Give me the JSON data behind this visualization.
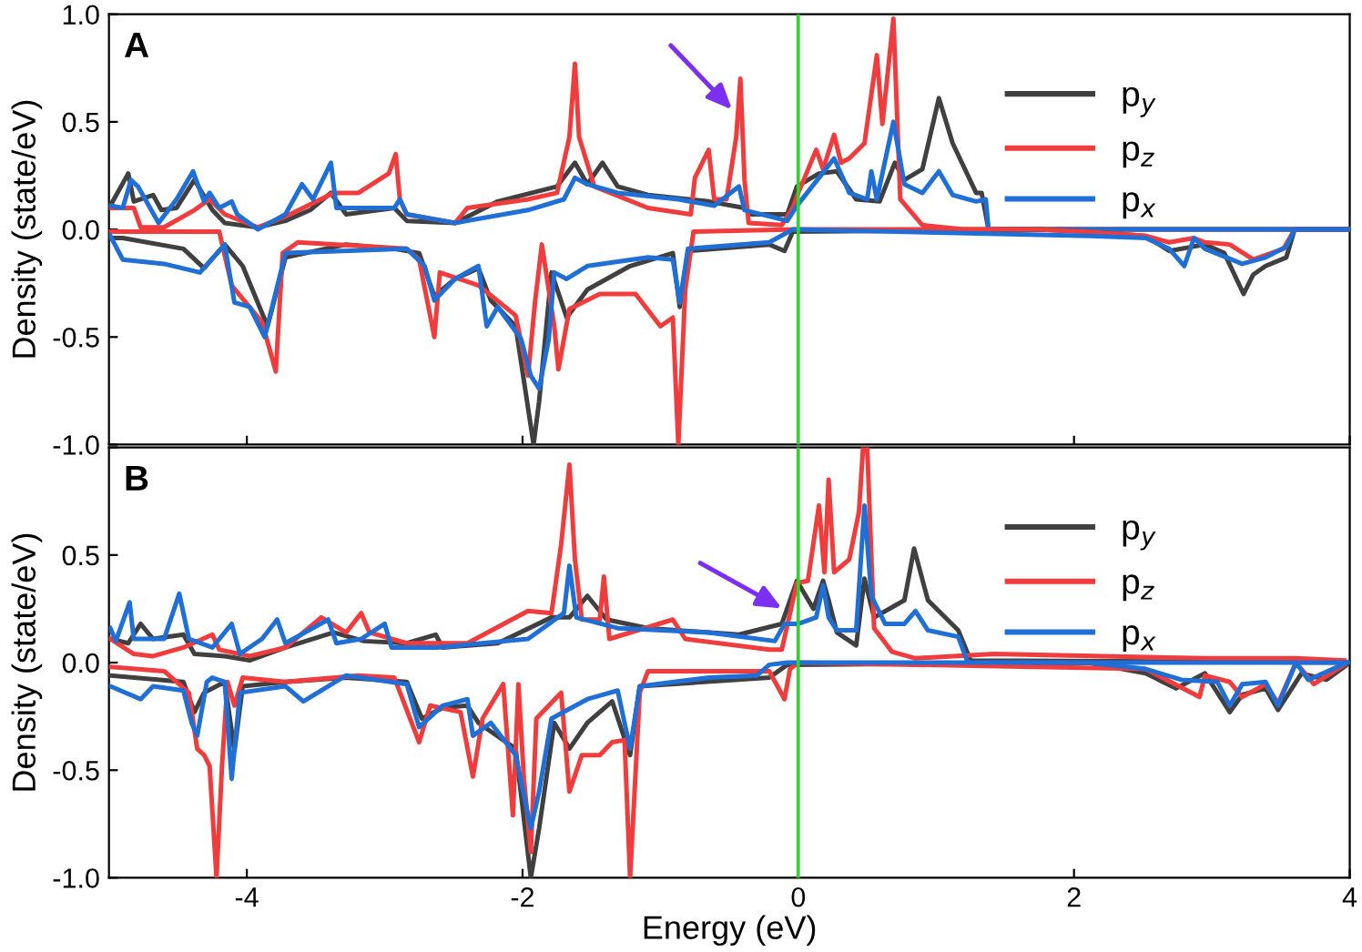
{
  "chart_data": [
    {
      "type": "line",
      "ylabel": "Density (state/eV)",
      "annotations": [
        "A"
      ],
      "xlim": [
        -5,
        4
      ],
      "ylim": [
        -1,
        1
      ],
      "xticks": [
        -4,
        -2,
        0,
        2,
        4
      ],
      "yticks": [
        {
          "value": -1,
          "label": "-1.0"
        },
        {
          "value": -0.5,
          "label": "-0.5"
        },
        {
          "value": 0,
          "label": "0.0"
        },
        {
          "value": 0.5,
          "label": "0.5"
        },
        {
          "value": 1,
          "label": "1.0"
        }
      ],
      "tick_labels": "y",
      "grid": false,
      "legend": "top right",
      "line_style": "solid",
      "marker": "none",
      "ref_lines": [
        {
          "axis": "x",
          "value": 0,
          "label": null,
          "color": "#22dd22"
        }
      ],
      "series": [
        {
          "name": "p$_{y}$",
          "color": "#404040",
          "x": [
            -4.99,
            -4.86,
            -4.82,
            -4.68,
            -4.62,
            -4.51,
            -4.38,
            -4.25,
            -4.16,
            -3.92,
            -3.72,
            -3.54,
            -3.39,
            -3.28,
            -2.93,
            -2.84,
            -2.49,
            -2.18,
            -1.75,
            -1.62,
            -1.53,
            -1.42,
            -1.31,
            -1.09,
            -0.65,
            -0.39,
            -0.34,
            -0.08,
            -0.01,
            0.15,
            0.28,
            0.42,
            0.59,
            0.7,
            0.77,
            0.9,
            1.02,
            1.12,
            1.29,
            1.33,
            1.38,
            4
          ],
          "values": [
            0.11,
            0.26,
            0.13,
            0.16,
            0.09,
            0.1,
            0.23,
            0.09,
            0.03,
            0.01,
            0.04,
            0.09,
            0.17,
            0.07,
            0.1,
            0.04,
            0.03,
            0.13,
            0.2,
            0.31,
            0.21,
            0.31,
            0.2,
            0.16,
            0.13,
            0.1,
            0.07,
            0.07,
            0.2,
            0.26,
            0.27,
            0.14,
            0.13,
            0.31,
            0.23,
            0.28,
            0.61,
            0.4,
            0.17,
            0.17,
            0,
            0
          ]
        },
        {
          "name": "p$_{z}$",
          "color": "#f03c3c",
          "x": [
            -4.99,
            -4.82,
            -4.77,
            -4.6,
            -4.38,
            -4.27,
            -4.16,
            -3.92,
            -3.72,
            -3.37,
            -3.19,
            -2.97,
            -2.92,
            -2.89,
            -2.84,
            -2.49,
            -2.4,
            -1.96,
            -1.75,
            -1.66,
            -1.62,
            -1.59,
            -1.48,
            -1.09,
            -0.78,
            -0.75,
            -0.65,
            -0.61,
            -0.52,
            -0.45,
            -0.42,
            -0.39,
            -0.36,
            -0.12,
            -0.04,
            0,
            0.13,
            0.18,
            0.26,
            0.31,
            0.37,
            0.48,
            0.57,
            0.61,
            0.69,
            0.74,
            0.9,
            1.2,
            4
          ],
          "values": [
            0.1,
            0.1,
            0.01,
            0.01,
            0.09,
            0.14,
            0.07,
            0.01,
            0.06,
            0.17,
            0.17,
            0.26,
            0.35,
            0.14,
            0.07,
            0.03,
            0.1,
            0.14,
            0.17,
            0.43,
            0.77,
            0.43,
            0.2,
            0.1,
            0.07,
            0.24,
            0.37,
            0.14,
            0.14,
            0.43,
            0.7,
            0.23,
            0.03,
            0.02,
            0.1,
            0.17,
            0.37,
            0.28,
            0.44,
            0.31,
            0.33,
            0.4,
            0.81,
            0.49,
            0.98,
            0.14,
            0.02,
            0,
            0
          ]
        },
        {
          "name": "p$_{x}$",
          "color": "#1f6fd6",
          "x": [
            -4.99,
            -4.9,
            -4.84,
            -4.79,
            -4.64,
            -4.51,
            -4.39,
            -4.31,
            -4.27,
            -4.2,
            -4.11,
            -4.07,
            -3.92,
            -3.72,
            -3.6,
            -3.52,
            -3.39,
            -3.35,
            -2.93,
            -2.89,
            -2.84,
            -2.49,
            -1.96,
            -1.7,
            -1.62,
            -1.53,
            -1.31,
            -0.87,
            -0.61,
            -0.43,
            -0.39,
            -0.08,
            -0.01,
            0.15,
            0.26,
            0.33,
            0.37,
            0.5,
            0.53,
            0.57,
            0.69,
            0.77,
            0.9,
            1.02,
            1.12,
            1.29,
            1.36,
            1.38,
            4
          ],
          "values": [
            0.11,
            0.1,
            0.23,
            0.2,
            0.03,
            0.14,
            0.27,
            0.13,
            0.17,
            0.1,
            0.13,
            0.07,
            0,
            0.07,
            0.21,
            0.14,
            0.31,
            0.1,
            0.1,
            0.14,
            0.07,
            0.03,
            0.09,
            0.14,
            0.24,
            0.21,
            0.17,
            0.14,
            0.11,
            0.2,
            0.09,
            0.04,
            0.11,
            0.24,
            0.33,
            0.23,
            0.17,
            0.14,
            0.27,
            0.14,
            0.5,
            0.21,
            0.17,
            0.27,
            0.16,
            0.13,
            0.14,
            0,
            0
          ]
        },
        {
          "color": "#404040",
          "x": [
            -4.99,
            -4.9,
            -4.46,
            -4.31,
            -4.16,
            -4.03,
            -3.85,
            -3.72,
            -3.28,
            -2.93,
            -2.75,
            -2.64,
            -2.49,
            -2.32,
            -2.23,
            -2.05,
            -1.92,
            -1.88,
            -1.79,
            -1.68,
            -1.53,
            -1.22,
            -0.91,
            -0.86,
            -0.8,
            -0.21,
            -0.1,
            -0.04,
            1.73,
            2.08,
            2.52,
            2.69,
            2.95,
            3.09,
            3.23,
            3.3,
            3.39,
            3.54,
            3.6,
            4
          ],
          "values": [
            -0.04,
            -0.04,
            -0.09,
            -0.18,
            -0.07,
            -0.17,
            -0.45,
            -0.13,
            -0.07,
            -0.09,
            -0.11,
            -0.31,
            -0.23,
            -0.18,
            -0.33,
            -0.45,
            -1.0,
            -0.8,
            -0.2,
            -0.41,
            -0.28,
            -0.17,
            -0.11,
            -0.36,
            -0.1,
            -0.07,
            -0.1,
            -0.01,
            0,
            -0.01,
            -0.03,
            -0.1,
            -0.07,
            -0.11,
            -0.3,
            -0.21,
            -0.17,
            -0.13,
            0,
            0
          ]
        },
        {
          "color": "#f03c3c",
          "x": [
            -4.99,
            -4.2,
            -4.11,
            -3.89,
            -3.79,
            -3.74,
            -3.63,
            -2.84,
            -2.75,
            -2.64,
            -2.6,
            -2.32,
            -2.05,
            -1.96,
            -1.91,
            -1.86,
            -1.77,
            -1.74,
            -1.66,
            -1.44,
            -1.18,
            -1.0,
            -0.91,
            -0.87,
            -0.82,
            -0.76,
            -0.01,
            1.73,
            2.08,
            2.52,
            2.69,
            2.87,
            2.95,
            3.13,
            3.3,
            3.52,
            3.6,
            4
          ],
          "values": [
            -0.01,
            -0.01,
            -0.26,
            -0.43,
            -0.66,
            -0.11,
            -0.06,
            -0.09,
            -0.14,
            -0.5,
            -0.2,
            -0.26,
            -0.4,
            -0.68,
            -0.34,
            -0.07,
            -0.45,
            -0.65,
            -0.37,
            -0.3,
            -0.3,
            -0.45,
            -0.41,
            -1.0,
            -0.28,
            -0.01,
            0,
            0,
            -0.01,
            -0.03,
            -0.06,
            -0.04,
            -0.06,
            -0.07,
            -0.14,
            -0.09,
            0,
            0
          ]
        },
        {
          "color": "#1f6fd6",
          "x": [
            -4.99,
            -4.9,
            -4.6,
            -4.34,
            -4.16,
            -4.09,
            -3.98,
            -3.87,
            -3.72,
            -2.84,
            -2.71,
            -2.64,
            -2.49,
            -2.32,
            -2.26,
            -2.18,
            -2.01,
            -1.94,
            -1.88,
            -1.81,
            -1.77,
            -1.68,
            -1.53,
            -1.09,
            -0.91,
            -0.86,
            -0.8,
            -0.21,
            -0.04,
            2.12,
            2.52,
            2.69,
            2.8,
            2.87,
            2.95,
            3.22,
            3.39,
            3.54,
            3.6,
            4
          ],
          "values": [
            -0.03,
            -0.14,
            -0.16,
            -0.2,
            -0.07,
            -0.34,
            -0.36,
            -0.5,
            -0.11,
            -0.09,
            -0.17,
            -0.33,
            -0.23,
            -0.17,
            -0.45,
            -0.36,
            -0.51,
            -0.68,
            -0.74,
            -0.51,
            -0.2,
            -0.23,
            -0.17,
            -0.13,
            -0.14,
            -0.34,
            -0.09,
            -0.06,
            0,
            -0.03,
            -0.04,
            -0.09,
            -0.17,
            -0.04,
            -0.09,
            -0.16,
            -0.13,
            -0.08,
            0,
            0
          ]
        }
      ]
    },
    {
      "type": "line",
      "xlabel": "Energy (eV)",
      "ylabel": "Density (state/eV)",
      "annotations": [
        "B"
      ],
      "xlim": [
        -5,
        4
      ],
      "ylim": [
        -1,
        1
      ],
      "xticks": [
        -4,
        -2,
        0,
        2,
        4
      ],
      "yticks": [
        {
          "value": -1,
          "label": "-1.0"
        },
        {
          "value": -0.5,
          "label": "-0.5"
        },
        {
          "value": 0,
          "label": "0.0"
        },
        {
          "value": 0.5,
          "label": "0.5"
        },
        {
          "value": 1,
          "label": null
        }
      ],
      "grid": false,
      "legend": "top right",
      "line_style": "solid",
      "marker": "none",
      "ref_lines": [
        {
          "axis": "x",
          "value": 0,
          "label": null,
          "color": "#22dd22"
        }
      ],
      "series": [
        {
          "name": "p$_{y}$",
          "color": "#404040",
          "x": [
            -4.99,
            -4.86,
            -4.77,
            -4.68,
            -4.46,
            -4.38,
            -4.16,
            -3.98,
            -3.72,
            -3.37,
            -3.15,
            -2.84,
            -2.63,
            -2.58,
            -2.18,
            -1.79,
            -1.66,
            -1.53,
            -1.39,
            -1.09,
            -0.43,
            -0.12,
            -0.01,
            0.11,
            0.18,
            0.22,
            0.28,
            0.42,
            0.48,
            0.55,
            0.77,
            0.84,
            0.94,
            1.16,
            1.25,
            4
          ],
          "values": [
            0.11,
            0.09,
            0.18,
            0.11,
            0.13,
            0.04,
            0.03,
            0.01,
            0.07,
            0.14,
            0.1,
            0.09,
            0.13,
            0.07,
            0.09,
            0.21,
            0.21,
            0.31,
            0.2,
            0.16,
            0.13,
            0.18,
            0.38,
            0.25,
            0.38,
            0.29,
            0.14,
            0.08,
            0.39,
            0.21,
            0.29,
            0.53,
            0.29,
            0.15,
            0.01,
            0
          ]
        },
        {
          "name": "p$_{z}$",
          "color": "#f03c3c",
          "x": [
            -4.99,
            -4.82,
            -4.68,
            -4.46,
            -4.25,
            -4.2,
            -3.98,
            -3.72,
            -3.46,
            -3.28,
            -3.17,
            -3.11,
            -2.84,
            -2.4,
            -1.96,
            -1.79,
            -1.72,
            -1.66,
            -1.62,
            -1.57,
            -1.44,
            -1.41,
            -1.37,
            -0.91,
            -0.82,
            -0.21,
            -0.12,
            -0.01,
            0.07,
            0.15,
            0.19,
            0.22,
            0.26,
            0.37,
            0.44,
            0.47,
            0.5,
            0.55,
            0.68,
            0.85,
            1.42,
            2.95,
            3.61,
            3.96
          ],
          "values": [
            0.11,
            0.04,
            0.03,
            0.07,
            0.13,
            0.06,
            0.03,
            0.07,
            0.21,
            0.14,
            0.23,
            0.14,
            0.09,
            0.09,
            0.24,
            0.23,
            0.55,
            0.92,
            0.48,
            0.2,
            0.2,
            0.4,
            0.11,
            0.2,
            0.11,
            0.06,
            0.06,
            0.37,
            0.38,
            0.73,
            0.42,
            0.85,
            0.42,
            0.48,
            0.7,
            1.0,
            1.0,
            0.16,
            0.05,
            0.02,
            0.04,
            0.02,
            0.02,
            0.01
          ]
        },
        {
          "name": "p$_{x}$",
          "color": "#1f6fd6",
          "x": [
            -4.99,
            -4.95,
            -4.85,
            -4.82,
            -4.6,
            -4.49,
            -4.42,
            -4.25,
            -4.11,
            -4.05,
            -3.89,
            -3.78,
            -3.72,
            -3.41,
            -3.35,
            -3.17,
            -3.0,
            -2.95,
            -2.62,
            -1.96,
            -1.7,
            -1.66,
            -1.61,
            -1.31,
            -0.65,
            -0.17,
            -0.1,
            0,
            0.13,
            0.18,
            0.22,
            0.28,
            0.42,
            0.48,
            0.53,
            0.63,
            0.77,
            0.85,
            0.94,
            1.16,
            1.23,
            4
          ],
          "values": [
            0.16,
            0.1,
            0.28,
            0.11,
            0.11,
            0.32,
            0.11,
            0.07,
            0.18,
            0.04,
            0.11,
            0.2,
            0.09,
            0.2,
            0.09,
            0.11,
            0.18,
            0.07,
            0.07,
            0.11,
            0.23,
            0.45,
            0.21,
            0.16,
            0.14,
            0.1,
            0.18,
            0.18,
            0.21,
            0.36,
            0.21,
            0.15,
            0.15,
            0.73,
            0.31,
            0.18,
            0.18,
            0.24,
            0.15,
            0.12,
            0,
            0
          ]
        },
        {
          "color": "#404040",
          "x": [
            -4.99,
            -4.46,
            -4.38,
            -4.31,
            -4.16,
            -4.09,
            -4.03,
            -3.72,
            -3.28,
            -2.84,
            -2.73,
            -2.58,
            -2.4,
            -2.32,
            -2.05,
            -1.94,
            -1.88,
            -1.77,
            -1.66,
            -1.53,
            -1.35,
            -1.22,
            -1.15,
            -0.21,
            -0.08,
            2.1,
            2.52,
            2.74,
            2.95,
            3.13,
            3.22,
            3.39,
            3.48,
            3.65,
            3.83,
            3.98
          ],
          "values": [
            -0.06,
            -0.09,
            -0.23,
            -0.14,
            -0.09,
            -0.41,
            -0.11,
            -0.09,
            -0.07,
            -0.09,
            -0.26,
            -0.21,
            -0.2,
            -0.28,
            -0.4,
            -1.0,
            -0.77,
            -0.28,
            -0.4,
            -0.28,
            -0.18,
            -0.43,
            -0.11,
            -0.07,
            -0.01,
            0,
            -0.05,
            -0.12,
            -0.05,
            -0.23,
            -0.15,
            -0.12,
            -0.22,
            -0.05,
            -0.08,
            -0.01
          ]
        },
        {
          "color": "#f03c3c",
          "x": [
            -4.99,
            -4.6,
            -4.42,
            -4.36,
            -4.31,
            -4.27,
            -4.22,
            -4.18,
            -4.14,
            -4.09,
            -4.03,
            -3.72,
            -3.19,
            -2.93,
            -2.75,
            -2.67,
            -2.45,
            -2.36,
            -2.29,
            -2.14,
            -2.07,
            -2.03,
            -1.99,
            -1.94,
            -1.9,
            -1.81,
            -1.72,
            -1.66,
            -1.57,
            -1.44,
            -1.35,
            -1.26,
            -1.22,
            -1.15,
            -1.09,
            -0.21,
            -0.1,
            -0.06,
            0,
            2.52,
            2.91,
            2.95,
            3.13,
            3.22,
            3.39,
            3.48,
            3.61,
            3.74,
            3.96
          ],
          "values": [
            -0.02,
            -0.04,
            -0.14,
            -0.4,
            -0.43,
            -0.48,
            -1.0,
            -0.48,
            -0.09,
            -0.2,
            -0.07,
            -0.09,
            -0.06,
            -0.07,
            -0.37,
            -0.2,
            -0.23,
            -0.53,
            -0.26,
            -0.1,
            -0.71,
            -0.1,
            -0.54,
            -0.88,
            -0.26,
            -0.2,
            -0.14,
            -0.6,
            -0.43,
            -0.43,
            -0.37,
            -0.36,
            -1.0,
            -0.14,
            -0.04,
            -0.04,
            -0.17,
            -0.03,
            0,
            -0.03,
            -0.16,
            -0.06,
            -0.09,
            -0.16,
            -0.1,
            -0.19,
            0,
            -0.1,
            -0.01
          ]
        },
        {
          "color": "#1f6fd6",
          "x": [
            -4.99,
            -4.77,
            -4.68,
            -4.46,
            -4.4,
            -4.36,
            -4.29,
            -4.25,
            -4.16,
            -4.11,
            -4.05,
            -3.72,
            -3.59,
            -3.28,
            -2.84,
            -2.75,
            -2.58,
            -2.4,
            -2.36,
            -2.23,
            -2.05,
            -1.94,
            -1.88,
            -1.79,
            -1.53,
            -1.31,
            -1.22,
            -1.15,
            -0.65,
            -0.3,
            -0.21,
            -0.08,
            2.1,
            2.52,
            2.78,
            3.04,
            3.13,
            3.22,
            3.39,
            3.48,
            3.61,
            3.7,
            3.98
          ],
          "values": [
            -0.11,
            -0.17,
            -0.11,
            -0.13,
            -0.28,
            -0.34,
            -0.09,
            -0.07,
            -0.09,
            -0.54,
            -0.14,
            -0.11,
            -0.18,
            -0.06,
            -0.1,
            -0.3,
            -0.2,
            -0.17,
            -0.34,
            -0.28,
            -0.43,
            -0.77,
            -0.6,
            -0.26,
            -0.17,
            -0.13,
            -0.4,
            -0.11,
            -0.07,
            -0.06,
            -0.01,
            0,
            0,
            -0.03,
            -0.08,
            -0.09,
            -0.2,
            -0.1,
            -0.09,
            -0.2,
            0,
            -0.08,
            0
          ]
        }
      ]
    }
  ]
}
